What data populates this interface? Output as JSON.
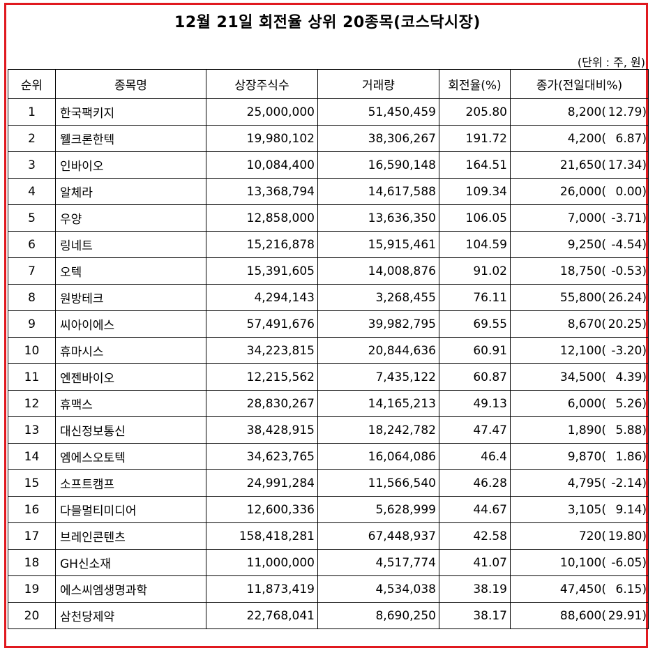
{
  "title": "12월 21일 회전율 상위 20종목(코스닥시장)",
  "unit_note": "(단위 : 주, 원)",
  "colors": {
    "border": "#e0191f"
  },
  "headers": [
    "순위",
    "종목명",
    "상장주식수",
    "거래량",
    "회전율(%)",
    "종가(전일대비%)"
  ],
  "rows": [
    {
      "rank": "1",
      "name": "한국팩키지",
      "shares": "25,000,000",
      "volume": "51,450,459",
      "turnover": "205.80",
      "close": "8,200(",
      "change": "12.79)"
    },
    {
      "rank": "2",
      "name": "웰크론한텍",
      "shares": "19,980,102",
      "volume": "38,306,267",
      "turnover": "191.72",
      "close": "4,200(",
      "change": "6.87)"
    },
    {
      "rank": "3",
      "name": "인바이오",
      "shares": "10,084,400",
      "volume": "16,590,148",
      "turnover": "164.51",
      "close": "21,650(",
      "change": "17.34)"
    },
    {
      "rank": "4",
      "name": "알체라",
      "shares": "13,368,794",
      "volume": "14,617,588",
      "turnover": "109.34",
      "close": "26,000(",
      "change": "0.00)"
    },
    {
      "rank": "5",
      "name": "우양",
      "shares": "12,858,000",
      "volume": "13,636,350",
      "turnover": "106.05",
      "close": "7,000(",
      "change": "-3.71)"
    },
    {
      "rank": "6",
      "name": "링네트",
      "shares": "15,216,878",
      "volume": "15,915,461",
      "turnover": "104.59",
      "close": "9,250(",
      "change": "-4.54)"
    },
    {
      "rank": "7",
      "name": "오텍",
      "shares": "15,391,605",
      "volume": "14,008,876",
      "turnover": "91.02",
      "close": "18,750(",
      "change": "-0.53)"
    },
    {
      "rank": "8",
      "name": "원방테크",
      "shares": "4,294,143",
      "volume": "3,268,455",
      "turnover": "76.11",
      "close": "55,800(",
      "change": "26.24)"
    },
    {
      "rank": "9",
      "name": "씨아이에스",
      "shares": "57,491,676",
      "volume": "39,982,795",
      "turnover": "69.55",
      "close": "8,670(",
      "change": "20.25)"
    },
    {
      "rank": "10",
      "name": "휴마시스",
      "shares": "34,223,815",
      "volume": "20,844,636",
      "turnover": "60.91",
      "close": "12,100(",
      "change": "-3.20)"
    },
    {
      "rank": "11",
      "name": "엔젠바이오",
      "shares": "12,215,562",
      "volume": "7,435,122",
      "turnover": "60.87",
      "close": "34,500(",
      "change": "4.39)"
    },
    {
      "rank": "12",
      "name": "휴맥스",
      "shares": "28,830,267",
      "volume": "14,165,213",
      "turnover": "49.13",
      "close": "6,000(",
      "change": "5.26)"
    },
    {
      "rank": "13",
      "name": "대신정보통신",
      "shares": "38,428,915",
      "volume": "18,242,782",
      "turnover": "47.47",
      "close": "1,890(",
      "change": "5.88)"
    },
    {
      "rank": "14",
      "name": "엠에스오토텍",
      "shares": "34,623,765",
      "volume": "16,064,086",
      "turnover": "46.4",
      "close": "9,870(",
      "change": "1.86)"
    },
    {
      "rank": "15",
      "name": "소프트캠프",
      "shares": "24,991,284",
      "volume": "11,566,540",
      "turnover": "46.28",
      "close": "4,795(",
      "change": "-2.14)"
    },
    {
      "rank": "16",
      "name": "다믈멀티미디어",
      "shares": "12,600,336",
      "volume": "5,628,999",
      "turnover": "44.67",
      "close": "3,105(",
      "change": "9.14)"
    },
    {
      "rank": "17",
      "name": "브레인콘텐츠",
      "shares": "158,418,281",
      "volume": "67,448,937",
      "turnover": "42.58",
      "close": "720(",
      "change": "19.80)"
    },
    {
      "rank": "18",
      "name": "GH신소재",
      "shares": "11,000,000",
      "volume": "4,517,774",
      "turnover": "41.07",
      "close": "10,100(",
      "change": "-6.05)"
    },
    {
      "rank": "19",
      "name": "에스씨엠생명과학",
      "shares": "11,873,419",
      "volume": "4,534,038",
      "turnover": "38.19",
      "close": "47,450(",
      "change": "6.15)"
    },
    {
      "rank": "20",
      "name": "삼천당제약",
      "shares": "22,768,041",
      "volume": "8,690,250",
      "turnover": "38.17",
      "close": "88,600(",
      "change": "29.91)"
    }
  ]
}
